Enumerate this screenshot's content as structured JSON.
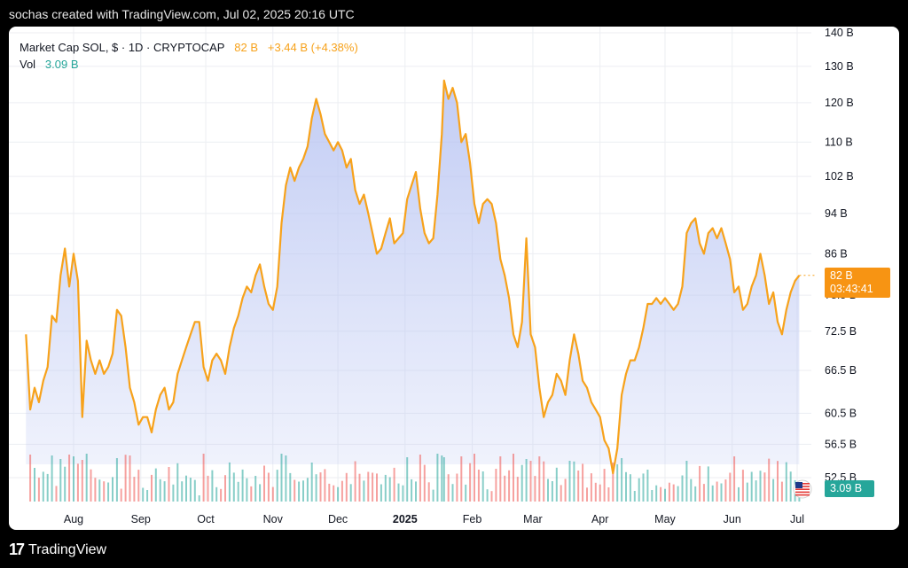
{
  "header": {
    "text": "sochas created with TradingView.com, Jul 02, 2025 20:16 UTC"
  },
  "legend": {
    "symbol": "Market Cap SOL, $ · 1D · CRYPTOCAP",
    "last": "82 B",
    "change": "+3.44 B (+4.38%)",
    "vol_label": "Vol",
    "vol_value": "3.09 B"
  },
  "badges": {
    "price": "82 B",
    "countdown": "03:43:41",
    "volume": "3.09 B"
  },
  "footer": {
    "brand": "TradingView"
  },
  "colors": {
    "line": "#f7a21b",
    "area": "#b8c4f2",
    "vol_up": "#26a69a",
    "vol_down": "#ef5350",
    "grid": "#eceef2"
  },
  "chart_data": {
    "type": "line",
    "title": "Market Cap SOL, $ · 1D · CRYPTOCAP",
    "y_tick_labels": [
      "140 B",
      "130 B",
      "120 B",
      "110 B",
      "102 B",
      "94 B",
      "86 B",
      "78.5 B",
      "72.5 B",
      "66.5 B",
      "60.5 B",
      "56.5 B",
      "52.5 B"
    ],
    "y_tick_values": [
      140,
      130,
      120,
      110,
      102,
      94,
      86,
      78.5,
      72.5,
      66.5,
      60.5,
      56.5,
      52.5
    ],
    "y_scale": "log",
    "x_tick_labels": [
      "Aug",
      "Sep",
      "Oct",
      "Nov",
      "Dec",
      "2025",
      "Feb",
      "Mar",
      "Apr",
      "May",
      "Jun",
      "Jul"
    ],
    "x_tick_dates": [
      "2024-08-01",
      "2024-09-01",
      "2024-10-01",
      "2024-11-01",
      "2024-12-01",
      "2025-01-01",
      "2025-02-01",
      "2025-03-01",
      "2025-04-01",
      "2025-05-01",
      "2025-06-01",
      "2025-07-01"
    ],
    "series": [
      {
        "name": "Market Cap SOL",
        "points": [
          [
            "2024-07-10",
            72
          ],
          [
            "2024-07-12",
            61
          ],
          [
            "2024-07-14",
            64
          ],
          [
            "2024-07-16",
            62
          ],
          [
            "2024-07-18",
            65
          ],
          [
            "2024-07-20",
            67
          ],
          [
            "2024-07-22",
            75
          ],
          [
            "2024-07-24",
            74
          ],
          [
            "2024-07-26",
            82
          ],
          [
            "2024-07-28",
            87
          ],
          [
            "2024-07-30",
            80
          ],
          [
            "2024-08-01",
            86
          ],
          [
            "2024-08-03",
            81
          ],
          [
            "2024-08-05",
            60
          ],
          [
            "2024-08-07",
            71
          ],
          [
            "2024-08-09",
            68
          ],
          [
            "2024-08-11",
            66
          ],
          [
            "2024-08-13",
            68
          ],
          [
            "2024-08-15",
            66
          ],
          [
            "2024-08-17",
            67
          ],
          [
            "2024-08-19",
            69
          ],
          [
            "2024-08-21",
            76
          ],
          [
            "2024-08-23",
            75
          ],
          [
            "2024-08-25",
            70
          ],
          [
            "2024-08-27",
            64
          ],
          [
            "2024-08-29",
            62
          ],
          [
            "2024-08-31",
            59
          ],
          [
            "2024-09-02",
            60
          ],
          [
            "2024-09-04",
            60
          ],
          [
            "2024-09-06",
            58
          ],
          [
            "2024-09-08",
            61
          ],
          [
            "2024-09-10",
            63
          ],
          [
            "2024-09-12",
            64
          ],
          [
            "2024-09-14",
            61
          ],
          [
            "2024-09-16",
            62
          ],
          [
            "2024-09-18",
            66
          ],
          [
            "2024-09-20",
            68
          ],
          [
            "2024-09-22",
            70
          ],
          [
            "2024-09-24",
            72
          ],
          [
            "2024-09-26",
            74
          ],
          [
            "2024-09-28",
            74
          ],
          [
            "2024-09-30",
            67
          ],
          [
            "2024-10-02",
            65
          ],
          [
            "2024-10-04",
            68
          ],
          [
            "2024-10-06",
            69
          ],
          [
            "2024-10-08",
            68
          ],
          [
            "2024-10-10",
            66
          ],
          [
            "2024-10-12",
            70
          ],
          [
            "2024-10-14",
            73
          ],
          [
            "2024-10-16",
            75
          ],
          [
            "2024-10-18",
            78
          ],
          [
            "2024-10-20",
            80
          ],
          [
            "2024-10-22",
            79
          ],
          [
            "2024-10-24",
            82
          ],
          [
            "2024-10-26",
            84
          ],
          [
            "2024-10-28",
            80
          ],
          [
            "2024-10-30",
            77
          ],
          [
            "2024-11-01",
            76
          ],
          [
            "2024-11-03",
            80
          ],
          [
            "2024-11-05",
            92
          ],
          [
            "2024-11-07",
            100
          ],
          [
            "2024-11-09",
            104
          ],
          [
            "2024-11-11",
            101
          ],
          [
            "2024-11-13",
            104
          ],
          [
            "2024-11-15",
            106
          ],
          [
            "2024-11-17",
            109
          ],
          [
            "2024-11-19",
            116
          ],
          [
            "2024-11-21",
            121
          ],
          [
            "2024-11-23",
            117
          ],
          [
            "2024-11-25",
            112
          ],
          [
            "2024-11-27",
            110
          ],
          [
            "2024-11-29",
            108
          ],
          [
            "2024-12-01",
            110
          ],
          [
            "2024-12-03",
            108
          ],
          [
            "2024-12-05",
            104
          ],
          [
            "2024-12-07",
            106
          ],
          [
            "2024-12-09",
            99
          ],
          [
            "2024-12-11",
            96
          ],
          [
            "2024-12-13",
            98
          ],
          [
            "2024-12-15",
            94
          ],
          [
            "2024-12-17",
            90
          ],
          [
            "2024-12-19",
            86
          ],
          [
            "2024-12-21",
            87
          ],
          [
            "2024-12-23",
            90
          ],
          [
            "2024-12-25",
            93
          ],
          [
            "2024-12-27",
            88
          ],
          [
            "2024-12-29",
            89
          ],
          [
            "2024-12-31",
            90
          ],
          [
            "2025-01-02",
            97
          ],
          [
            "2025-01-04",
            100
          ],
          [
            "2025-01-06",
            103
          ],
          [
            "2025-01-08",
            95
          ],
          [
            "2025-01-10",
            90
          ],
          [
            "2025-01-12",
            88
          ],
          [
            "2025-01-14",
            89
          ],
          [
            "2025-01-16",
            98
          ],
          [
            "2025-01-18",
            112
          ],
          [
            "2025-01-19",
            126
          ],
          [
            "2025-01-21",
            121
          ],
          [
            "2025-01-23",
            124
          ],
          [
            "2025-01-25",
            120
          ],
          [
            "2025-01-27",
            110
          ],
          [
            "2025-01-29",
            112
          ],
          [
            "2025-01-31",
            105
          ],
          [
            "2025-02-02",
            96
          ],
          [
            "2025-02-04",
            92
          ],
          [
            "2025-02-06",
            96
          ],
          [
            "2025-02-08",
            97
          ],
          [
            "2025-02-10",
            96
          ],
          [
            "2025-02-12",
            92
          ],
          [
            "2025-02-14",
            85
          ],
          [
            "2025-02-16",
            82
          ],
          [
            "2025-02-18",
            78
          ],
          [
            "2025-02-20",
            72
          ],
          [
            "2025-02-22",
            70
          ],
          [
            "2025-02-24",
            74
          ],
          [
            "2025-02-26",
            89
          ],
          [
            "2025-02-28",
            72
          ],
          [
            "2025-03-02",
            70
          ],
          [
            "2025-03-04",
            64
          ],
          [
            "2025-03-06",
            60
          ],
          [
            "2025-03-08",
            62
          ],
          [
            "2025-03-10",
            63
          ],
          [
            "2025-03-12",
            66
          ],
          [
            "2025-03-14",
            65
          ],
          [
            "2025-03-16",
            63
          ],
          [
            "2025-03-18",
            68
          ],
          [
            "2025-03-20",
            72
          ],
          [
            "2025-03-22",
            69
          ],
          [
            "2025-03-24",
            65
          ],
          [
            "2025-03-26",
            64
          ],
          [
            "2025-03-28",
            62
          ],
          [
            "2025-03-30",
            61
          ],
          [
            "2025-04-01",
            60
          ],
          [
            "2025-04-03",
            57
          ],
          [
            "2025-04-05",
            56
          ],
          [
            "2025-04-07",
            53
          ],
          [
            "2025-04-09",
            56
          ],
          [
            "2025-04-11",
            63
          ],
          [
            "2025-04-13",
            66
          ],
          [
            "2025-04-15",
            68
          ],
          [
            "2025-04-17",
            68
          ],
          [
            "2025-04-19",
            70
          ],
          [
            "2025-04-21",
            73
          ],
          [
            "2025-04-23",
            77
          ],
          [
            "2025-04-25",
            77
          ],
          [
            "2025-04-27",
            78
          ],
          [
            "2025-04-29",
            77
          ],
          [
            "2025-05-01",
            78
          ],
          [
            "2025-05-03",
            77
          ],
          [
            "2025-05-05",
            76
          ],
          [
            "2025-05-07",
            77
          ],
          [
            "2025-05-09",
            80
          ],
          [
            "2025-05-11",
            90
          ],
          [
            "2025-05-13",
            92
          ],
          [
            "2025-05-15",
            93
          ],
          [
            "2025-05-17",
            88
          ],
          [
            "2025-05-19",
            86
          ],
          [
            "2025-05-21",
            90
          ],
          [
            "2025-05-23",
            91
          ],
          [
            "2025-05-25",
            89
          ],
          [
            "2025-05-27",
            91
          ],
          [
            "2025-05-29",
            88
          ],
          [
            "2025-05-31",
            85
          ],
          [
            "2025-06-02",
            79
          ],
          [
            "2025-06-04",
            80
          ],
          [
            "2025-06-06",
            76
          ],
          [
            "2025-06-08",
            77
          ],
          [
            "2025-06-10",
            80
          ],
          [
            "2025-06-12",
            82
          ],
          [
            "2025-06-14",
            86
          ],
          [
            "2025-06-16",
            82
          ],
          [
            "2025-06-18",
            77
          ],
          [
            "2025-06-20",
            79
          ],
          [
            "2025-06-22",
            74
          ],
          [
            "2025-06-24",
            72
          ],
          [
            "2025-06-26",
            76
          ],
          [
            "2025-06-28",
            79
          ],
          [
            "2025-06-30",
            81
          ],
          [
            "2025-07-02",
            82
          ]
        ]
      }
    ]
  }
}
